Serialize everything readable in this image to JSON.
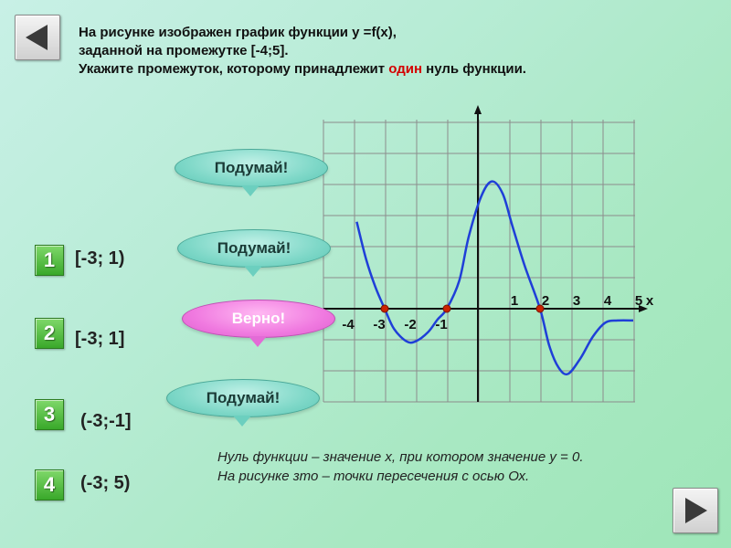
{
  "question": {
    "line1": "На рисунке изображен график функции y =f(x),",
    "line2": "заданной на промежутке [-4;5].",
    "line3_before": "Укажите промежуток, которому принадлежит ",
    "line3_highlight": "один",
    "line3_after": " нуль функции."
  },
  "answers": [
    {
      "number": "1",
      "text": "[-3; 1)"
    },
    {
      "number": "2",
      "text": "[-3; 1]"
    },
    {
      "number": "3",
      "text": "(-3;-1]"
    },
    {
      "number": "4",
      "text": "(-3; 5)"
    }
  ],
  "feedback": [
    {
      "label": "Подумай!",
      "kind": "wrong"
    },
    {
      "label": "Подумай!",
      "kind": "wrong"
    },
    {
      "label": "Верно!",
      "kind": "correct"
    },
    {
      "label": "Подумай!",
      "kind": "wrong"
    }
  ],
  "definition": {
    "line1": "Нуль функции – значение х, при котором значение у = 0.",
    "line2": "На рисунке зто – точки пересечения с осью Ох."
  },
  "chart_data": {
    "type": "line",
    "xlabel": "x",
    "ylabel": "",
    "x_ticks": [
      "-4",
      "-3",
      "-2",
      "-1",
      "1",
      "2",
      "3",
      "4",
      "5"
    ],
    "domain": [
      -4,
      5
    ],
    "zeros": [
      -3,
      -1,
      2
    ],
    "curve_color": "#1f3fd8",
    "zero_marker_color": "#cc2200",
    "grid": true
  },
  "colors": {
    "answer_badge": "#3fae2c",
    "bubble_wrong": "#7fd8c8",
    "bubble_correct": "#f07ae0",
    "highlight": "#d40000"
  },
  "icons": {
    "back": "back-arrow-icon",
    "next": "next-arrow-icon"
  }
}
